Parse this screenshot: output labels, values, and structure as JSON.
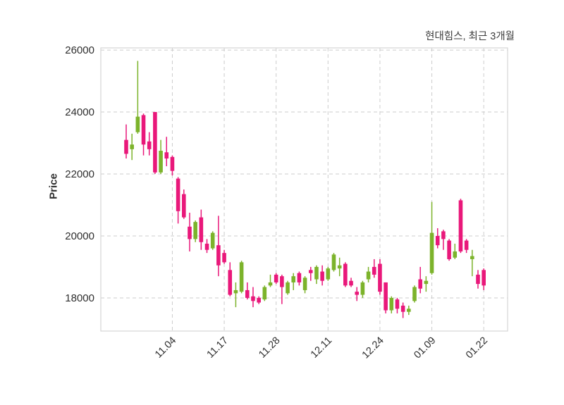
{
  "header": {
    "title": "현대힘스, 최근 3개월"
  },
  "chart_data": {
    "type": "candlestick",
    "title": "현대힘스, 최근 3개월",
    "ylabel": "Price",
    "ylim": [
      16930,
      26070
    ],
    "yticks": [
      18000,
      20000,
      22000,
      24000,
      26000
    ],
    "xticks": [
      {
        "index": 8,
        "label": "11.04"
      },
      {
        "index": 17,
        "label": "11.17"
      },
      {
        "index": 26,
        "label": "11.28"
      },
      {
        "index": 35,
        "label": "12.11"
      },
      {
        "index": 44,
        "label": "12.24"
      },
      {
        "index": 53,
        "label": "01.09"
      },
      {
        "index": 62,
        "label": "01.22"
      }
    ],
    "grid": true,
    "legend": false,
    "colors": {
      "up": "#7cb32b",
      "down": "#e9187a",
      "grid": "#cccccc",
      "frame": "#d6d6d6",
      "tick_text": "#2e2e2e",
      "title_text": "#3d3d3d",
      "background": "#ffffff"
    },
    "ohlc_note": "each candle is [open, high, low, close]",
    "candles": [
      [
        23100,
        23600,
        22500,
        22650
      ],
      [
        22800,
        23300,
        22450,
        22950
      ],
      [
        23350,
        25650,
        23300,
        23850
      ],
      [
        23900,
        23950,
        22600,
        22950
      ],
      [
        23050,
        23350,
        22600,
        22800
      ],
      [
        24000,
        24000,
        22000,
        22050
      ],
      [
        22050,
        23100,
        22000,
        22750
      ],
      [
        22700,
        23200,
        22250,
        22500
      ],
      [
        22550,
        22600,
        21950,
        22100
      ],
      [
        21850,
        21900,
        20400,
        20800
      ],
      [
        21350,
        21500,
        20550,
        20600
      ],
      [
        20300,
        20750,
        19500,
        19900
      ],
      [
        19900,
        20500,
        19800,
        20450
      ],
      [
        20600,
        20850,
        19550,
        19800
      ],
      [
        19750,
        19900,
        19450,
        19550
      ],
      [
        19600,
        20150,
        19550,
        20100
      ],
      [
        19700,
        20650,
        18700,
        19050
      ],
      [
        19450,
        19550,
        19100,
        19150
      ],
      [
        18900,
        19150,
        18050,
        18100
      ],
      [
        18150,
        18500,
        17700,
        18250
      ],
      [
        18200,
        19200,
        18150,
        19150
      ],
      [
        18250,
        18500,
        17950,
        18000
      ],
      [
        18050,
        18350,
        17700,
        17900
      ],
      [
        18000,
        18050,
        17800,
        17850
      ],
      [
        17950,
        18400,
        17900,
        18350
      ],
      [
        18400,
        18750,
        18350,
        18500
      ],
      [
        18750,
        18800,
        18450,
        18500
      ],
      [
        18700,
        18750,
        17800,
        18350
      ],
      [
        18150,
        18550,
        18100,
        18500
      ],
      [
        18500,
        18800,
        18250,
        18700
      ],
      [
        18800,
        18850,
        18400,
        18500
      ],
      [
        18250,
        18700,
        18150,
        18650
      ],
      [
        18900,
        19000,
        18550,
        18800
      ],
      [
        18600,
        19050,
        18450,
        19000
      ],
      [
        18850,
        19050,
        18400,
        18550
      ],
      [
        18600,
        19000,
        18550,
        18950
      ],
      [
        18900,
        19450,
        18850,
        19400
      ],
      [
        18950,
        19300,
        18700,
        19050
      ],
      [
        19100,
        19150,
        18350,
        18400
      ],
      [
        18550,
        18650,
        18350,
        18400
      ],
      [
        18200,
        18350,
        17900,
        18100
      ],
      [
        18100,
        18550,
        18000,
        18500
      ],
      [
        18600,
        19000,
        18500,
        18850
      ],
      [
        19000,
        19250,
        18650,
        18750
      ],
      [
        19100,
        19250,
        18100,
        18200
      ],
      [
        18500,
        18500,
        17500,
        17600
      ],
      [
        17600,
        18050,
        17500,
        18000
      ],
      [
        17950,
        18000,
        17500,
        17650
      ],
      [
        17750,
        17850,
        17350,
        17550
      ],
      [
        17550,
        17750,
        17450,
        17650
      ],
      [
        17900,
        18400,
        17850,
        18350
      ],
      [
        18600,
        19000,
        18150,
        18300
      ],
      [
        18450,
        18700,
        18200,
        18550
      ],
      [
        18800,
        21100,
        18750,
        20100
      ],
      [
        20000,
        20250,
        19600,
        19700
      ],
      [
        20150,
        20200,
        19550,
        19900
      ],
      [
        19850,
        19900,
        19200,
        19250
      ],
      [
        19300,
        19750,
        19250,
        19500
      ],
      [
        21150,
        21200,
        19450,
        19500
      ],
      [
        19850,
        19900,
        19450,
        19550
      ],
      [
        19250,
        19550,
        18700,
        19350
      ],
      [
        18750,
        18900,
        18300,
        18450
      ],
      [
        18900,
        18950,
        18250,
        18400
      ]
    ]
  }
}
